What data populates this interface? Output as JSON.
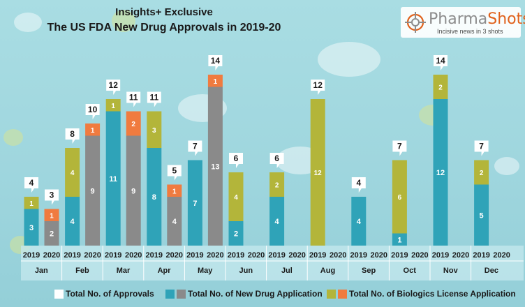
{
  "header": {
    "title_line1": "Insights+ Exclusive",
    "title_line2": "The US FDA New Drug Approvals in 2019-20"
  },
  "logo": {
    "name_part1": "Pharma",
    "name_part2": "Shots",
    "tagline": "Incisive news in 3 shots",
    "icon": "crosshair-target-icon"
  },
  "legend": {
    "approvals": "Total No. of Approvals",
    "nda": "Total No. of New Drug Application",
    "bla": "Total No. of Biologics License Application"
  },
  "colors": {
    "nda_2019": "#2fa3b8",
    "nda_2020": "#8a8a8a",
    "bla_2019": "#b3b53a",
    "bla_2020": "#f07b3f",
    "callout": "#ffffff"
  },
  "chart_data": {
    "type": "bar",
    "stacked": true,
    "title": "The US FDA New Drug Approvals in 2019-20",
    "categories": [
      "Jan",
      "Feb",
      "Mar",
      "Apr",
      "May",
      "Jun",
      "Jul",
      "Aug",
      "Sep",
      "Oct",
      "Nov",
      "Dec"
    ],
    "sub_categories": [
      "2019",
      "2020"
    ],
    "ylim": [
      0,
      15
    ],
    "grid": false,
    "legend_position": "bottom",
    "data": [
      {
        "month": "Jan",
        "y2019": {
          "nda": 3,
          "bla": 1,
          "total": 4
        },
        "y2020": {
          "nda": 2,
          "bla": 1,
          "total": 3
        }
      },
      {
        "month": "Feb",
        "y2019": {
          "nda": 4,
          "bla": 4,
          "total": 8
        },
        "y2020": {
          "nda": 9,
          "bla": 1,
          "total": 10
        }
      },
      {
        "month": "Mar",
        "y2019": {
          "nda": 11,
          "bla": 1,
          "total": 12
        },
        "y2020": {
          "nda": 9,
          "bla": 2,
          "total": 11
        }
      },
      {
        "month": "Apr",
        "y2019": {
          "nda": 8,
          "bla": 3,
          "total": 11
        },
        "y2020": {
          "nda": 4,
          "bla": 1,
          "total": 5
        }
      },
      {
        "month": "May",
        "y2019": {
          "nda": 7,
          "bla": 0,
          "total": 7
        },
        "y2020": {
          "nda": 13,
          "bla": 1,
          "total": 14
        }
      },
      {
        "month": "Jun",
        "y2019": {
          "nda": 2,
          "bla": 4,
          "total": 6
        },
        "y2020": null
      },
      {
        "month": "Jul",
        "y2019": {
          "nda": 4,
          "bla": 2,
          "total": 6
        },
        "y2020": null
      },
      {
        "month": "Aug",
        "y2019": {
          "nda": 0,
          "bla": 12,
          "total": 12
        },
        "y2020": null
      },
      {
        "month": "Sep",
        "y2019": {
          "nda": 4,
          "bla": 0,
          "total": 4
        },
        "y2020": null
      },
      {
        "month": "Oct",
        "y2019": {
          "nda": 1,
          "bla": 6,
          "total": 7
        },
        "y2020": null
      },
      {
        "month": "Nov",
        "y2019": {
          "nda": 12,
          "bla": 2,
          "total": 14
        },
        "y2020": null
      },
      {
        "month": "Dec",
        "y2019": {
          "nda": 5,
          "bla": 2,
          "total": 7
        },
        "y2020": null
      }
    ]
  }
}
